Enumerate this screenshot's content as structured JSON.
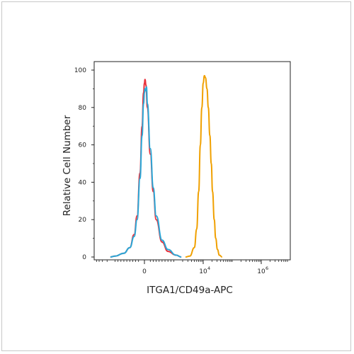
{
  "chart_data": {
    "type": "line",
    "title": "",
    "xlabel": "ITGA1/CD49a-APC",
    "ylabel": "Relative Cell Number",
    "ylim": [
      0,
      100
    ],
    "xscale": "biexponential",
    "x_ticks": [
      {
        "value": 0,
        "label": "0",
        "exp": ""
      },
      {
        "value": 10000,
        "label": "10",
        "exp": "4"
      },
      {
        "value": 1000000,
        "label": "10",
        "exp": "6"
      }
    ],
    "y_ticks": [
      0,
      20,
      40,
      60,
      80,
      100
    ],
    "grid": false,
    "legend": "none",
    "series": [
      {
        "color": "#e8303a",
        "points": [
          [
            -1500,
            0
          ],
          [
            -1000,
            0.5
          ],
          [
            -700,
            2
          ],
          [
            -500,
            5
          ],
          [
            -350,
            12
          ],
          [
            -250,
            22
          ],
          [
            -150,
            45
          ],
          [
            -80,
            70
          ],
          [
            -30,
            88
          ],
          [
            0,
            93
          ],
          [
            20,
            95
          ],
          [
            50,
            92
          ],
          [
            100,
            80
          ],
          [
            200,
            55
          ],
          [
            300,
            35
          ],
          [
            400,
            20
          ],
          [
            600,
            8
          ],
          [
            800,
            3
          ],
          [
            1200,
            1
          ],
          [
            1800,
            0
          ]
        ]
      },
      {
        "color": "#2aa8d8",
        "points": [
          [
            -1500,
            0
          ],
          [
            -1000,
            0.5
          ],
          [
            -700,
            2
          ],
          [
            -500,
            5
          ],
          [
            -350,
            11
          ],
          [
            -250,
            20
          ],
          [
            -150,
            42
          ],
          [
            -80,
            65
          ],
          [
            -30,
            82
          ],
          [
            0,
            88
          ],
          [
            20,
            90
          ],
          [
            40,
            89
          ],
          [
            70,
            91
          ],
          [
            100,
            82
          ],
          [
            200,
            58
          ],
          [
            300,
            37
          ],
          [
            400,
            22
          ],
          [
            600,
            9
          ],
          [
            800,
            4
          ],
          [
            1200,
            1
          ],
          [
            1800,
            0
          ]
        ]
      },
      {
        "color": "#f0a000",
        "points": [
          [
            2500,
            0
          ],
          [
            3500,
            0.5
          ],
          [
            5000,
            5
          ],
          [
            6000,
            15
          ],
          [
            7000,
            35
          ],
          [
            8000,
            60
          ],
          [
            9000,
            80
          ],
          [
            10000,
            93
          ],
          [
            11000,
            97
          ],
          [
            12000,
            96
          ],
          [
            13500,
            90
          ],
          [
            15000,
            80
          ],
          [
            17000,
            65
          ],
          [
            19000,
            50
          ],
          [
            21000,
            35
          ],
          [
            24000,
            20
          ],
          [
            27000,
            10
          ],
          [
            31000,
            4
          ],
          [
            36000,
            1
          ],
          [
            45000,
            0
          ]
        ]
      }
    ]
  }
}
